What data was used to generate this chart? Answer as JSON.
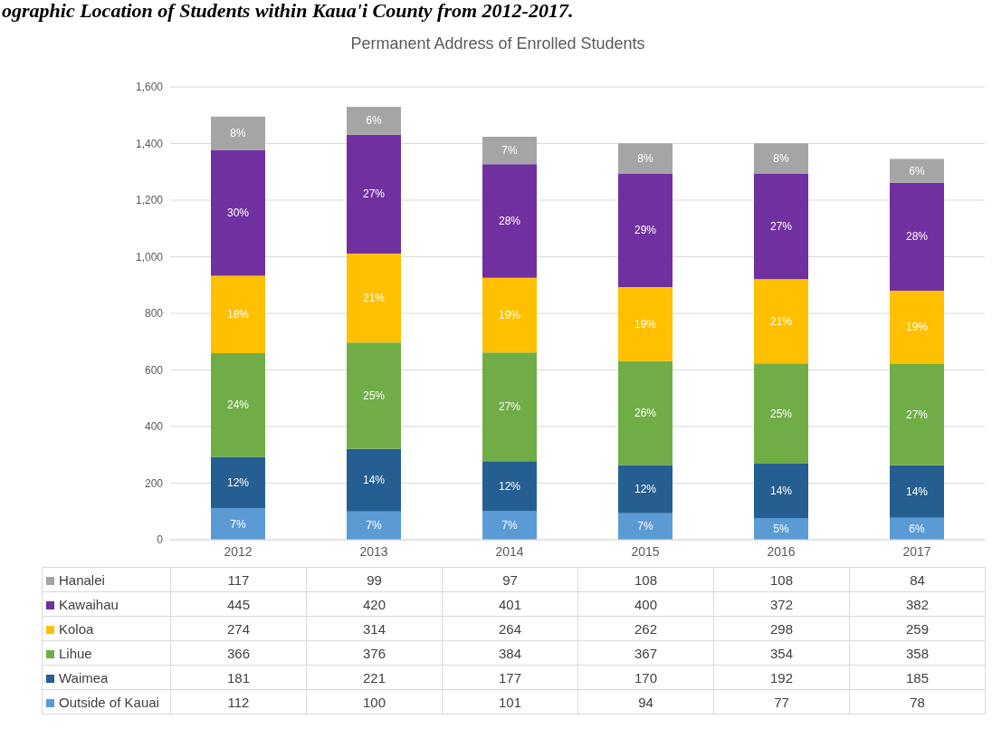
{
  "chart_data": {
    "type": "bar",
    "title": "Permanent Address of Enrolled Students",
    "annotations": [
      "ographic Location of Students within Kaua'i County from 2012-2017.",
      "7%",
      "12%",
      "24%",
      "18%",
      "30%",
      "8%",
      "7%",
      "14%",
      "25%",
      "21%",
      "27%",
      "6%",
      "7%",
      "12%",
      "27%",
      "19%",
      "28%",
      "7%",
      "7%",
      "12%",
      "26%",
      "19%",
      "29%",
      "8%",
      "5%",
      "14%",
      "25%",
      "21%",
      "27%",
      "8%",
      "6%",
      "14%",
      "27%",
      "19%",
      "28%",
      "6%"
    ],
    "categories": [
      "2012",
      "2013",
      "2014",
      "2015",
      "2016",
      "2017"
    ],
    "stacked": true,
    "series": [
      {
        "name": "Outside of Kauai",
        "color": "#5b9bd5",
        "values": [
          112,
          100,
          101,
          94,
          77,
          78
        ]
      },
      {
        "name": "Waimea",
        "color": "#255e91",
        "values": [
          181,
          221,
          177,
          170,
          192,
          185
        ]
      },
      {
        "name": "Lihue",
        "color": "#70ad47",
        "values": [
          366,
          376,
          384,
          367,
          354,
          358
        ]
      },
      {
        "name": "Koloa",
        "color": "#ffc000",
        "values": [
          274,
          314,
          264,
          262,
          298,
          259
        ]
      },
      {
        "name": "Kawaihau",
        "color": "#7030a0",
        "values": [
          445,
          420,
          401,
          400,
          372,
          382
        ]
      },
      {
        "name": "Hanalei",
        "color": "#a5a5a5",
        "values": [
          117,
          99,
          97,
          108,
          108,
          84
        ]
      }
    ],
    "ylim": [
      0,
      1600
    ],
    "yticks": [
      0,
      200,
      400,
      600,
      800,
      {
        "value": 1000,
        "label": "1,000"
      },
      {
        "value": 1200,
        "label": "1,200"
      },
      {
        "value": 1400,
        "label": "1,400"
      },
      {
        "value": 1600,
        "label": "1,600"
      }
    ],
    "grid": "y",
    "legend": "bottom",
    "data_labels": true
  }
}
